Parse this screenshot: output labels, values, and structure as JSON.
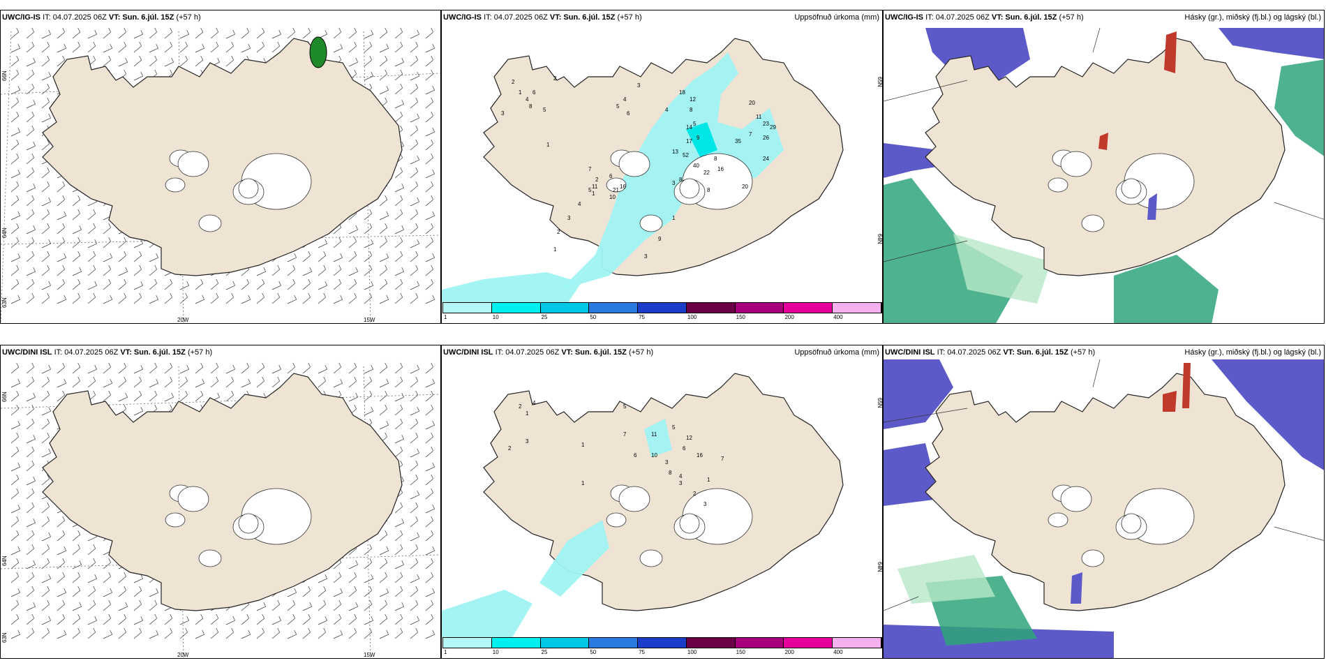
{
  "init_time": "IT: 04.07.2025 06Z",
  "valid_time": "VT: Sun. 6.júl. 15Z",
  "lead": "(+57 h)",
  "precip_title": "Uppsöfnuð úrkoma (mm)",
  "cloud_title": "Hásky (gr.), miðský (fj.bl.) og lágský (bl.)",
  "model_top": "UWC/IG-IS",
  "model_bottom": "UWC/DINI ISL",
  "lat_labels": [
    "66N",
    "64N",
    "63N",
    "65N"
  ],
  "lon_labels": [
    "20W",
    "15W"
  ],
  "colorbar": {
    "labels": [
      "1",
      "10",
      "25",
      "50",
      "75",
      "100",
      "150",
      "200",
      "400"
    ],
    "colors": [
      "#b6f7f7",
      "#00f0f0",
      "#00c8e6",
      "#2a7ae0",
      "#1a3cc8",
      "#6a0046",
      "#a8007a",
      "#e8009c",
      "#f5b0f0"
    ]
  },
  "colors": {
    "land": "#efe3d3",
    "precip": "#9ff3f3",
    "high_cloud": "#5c5ac8",
    "mid_cloud": "#2fa57a",
    "low_cloud": "#b8e8c8"
  },
  "precip_values_top": [
    "2",
    "1",
    "4",
    "6",
    "8",
    "5",
    "3",
    "2",
    "1",
    "5",
    "4",
    "6",
    "3",
    "18",
    "12",
    "4",
    "8",
    "5",
    "20",
    "11",
    "7",
    "23",
    "26",
    "29",
    "24",
    "35",
    "17",
    "14",
    "9",
    "13",
    "40",
    "52",
    "22",
    "16",
    "8",
    "3",
    "6",
    "2",
    "1",
    "7",
    "11",
    "21",
    "16",
    "10",
    "5",
    "4",
    "3",
    "2",
    "1",
    "8",
    "8",
    "20",
    "1",
    "9",
    "3"
  ],
  "precip_values_bottom": [
    "2",
    "1",
    "4",
    "3",
    "2",
    "1",
    "5",
    "7",
    "6",
    "11",
    "10",
    "3",
    "5",
    "12",
    "16",
    "8",
    "4",
    "3",
    "6",
    "7",
    "1",
    "2",
    "3",
    "1"
  ]
}
